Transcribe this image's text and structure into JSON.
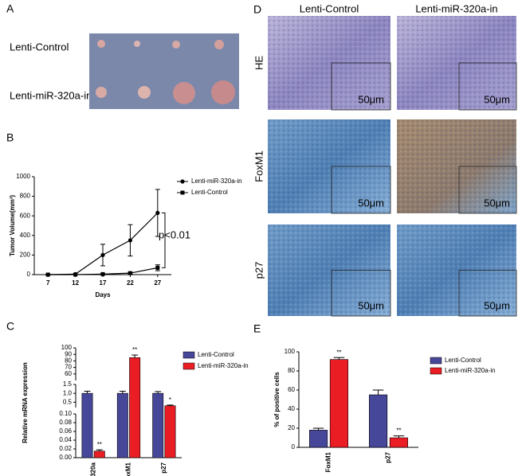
{
  "panel_a": {
    "letter": "A",
    "rows": [
      "Lenti-Control",
      "Lenti-miR-320a-in"
    ]
  },
  "panel_d": {
    "letter": "D",
    "columns": [
      "Lenti-Control",
      "Lenti-miR-320a-in"
    ],
    "rows": [
      "HE",
      "FoxM1",
      "p27"
    ],
    "scale_bar": "50μm"
  },
  "chart_data": [
    {
      "type": "line",
      "panel": "B",
      "ylabel": "Tumor Volume(mm³)",
      "xlabel": "Days",
      "categories": [
        "7",
        "12",
        "17",
        "22",
        "27"
      ],
      "series": [
        {
          "name": "Lenti-miR-320a-in",
          "color": "#000000",
          "marker": "circle",
          "values": [
            0,
            5,
            200,
            350,
            630
          ],
          "errors": [
            5,
            5,
            110,
            160,
            240
          ]
        },
        {
          "name": "Lenti-Control",
          "color": "#000000",
          "marker": "square",
          "values": [
            0,
            0,
            5,
            15,
            70
          ],
          "errors": [
            0,
            0,
            5,
            10,
            30
          ]
        }
      ],
      "ylim": [
        0,
        1000
      ],
      "yticks": [
        0,
        200,
        400,
        600,
        800,
        1000
      ],
      "annotation": "p<0.01",
      "legend": "right"
    },
    {
      "type": "bar",
      "panel": "C",
      "ylabel": "Relative mRNA expression",
      "categories": [
        "miR-320a",
        "FoxM1",
        "p27"
      ],
      "series": [
        {
          "name": "Lenti-Control",
          "color": "#47479a",
          "values": [
            1.0,
            1.0,
            1.0
          ],
          "errors": [
            0.12,
            0.12,
            0.1
          ],
          "annotations": [
            null,
            null,
            null
          ]
        },
        {
          "name": "Lenti-miR-320a-in",
          "color": "#ea1c24",
          "values": [
            0.015,
            85,
            0.3
          ],
          "errors": [
            0.003,
            4,
            0.04
          ],
          "annotations": [
            "**",
            "**",
            "*"
          ]
        }
      ],
      "y_segments": [
        {
          "ylim": [
            0,
            0.1
          ],
          "yticks": [
            {
              "value": 0,
              "label": "0.00"
            },
            0.02,
            0.04,
            0.06,
            0.08,
            {
              "value": 0.1,
              "label": "0.10"
            }
          ]
        },
        {
          "ylim": [
            0.2,
            1.5
          ],
          "yticks": [
            0.5,
            {
              "value": 1,
              "label": "1.0"
            },
            1.5
          ]
        },
        {
          "ylim": [
            50,
            100
          ],
          "yticks": [
            60,
            70,
            80,
            90,
            100
          ]
        }
      ],
      "legend": "right"
    },
    {
      "type": "bar",
      "panel": "E",
      "ylabel": "% of positive cells",
      "categories": [
        "FoxM1",
        "p27"
      ],
      "series": [
        {
          "name": "Lenti-Control",
          "color": "#47479a",
          "values": [
            18,
            55
          ],
          "errors": [
            2,
            5
          ],
          "annotations": [
            null,
            null
          ]
        },
        {
          "name": "Lenti-miR-320a-in",
          "color": "#ea1c24",
          "values": [
            92,
            10
          ],
          "errors": [
            2,
            2
          ],
          "annotations": [
            "**",
            "**"
          ]
        }
      ],
      "ylim": [
        0,
        100
      ],
      "yticks": [
        0,
        20,
        40,
        60,
        80,
        100
      ],
      "legend": "right"
    }
  ]
}
